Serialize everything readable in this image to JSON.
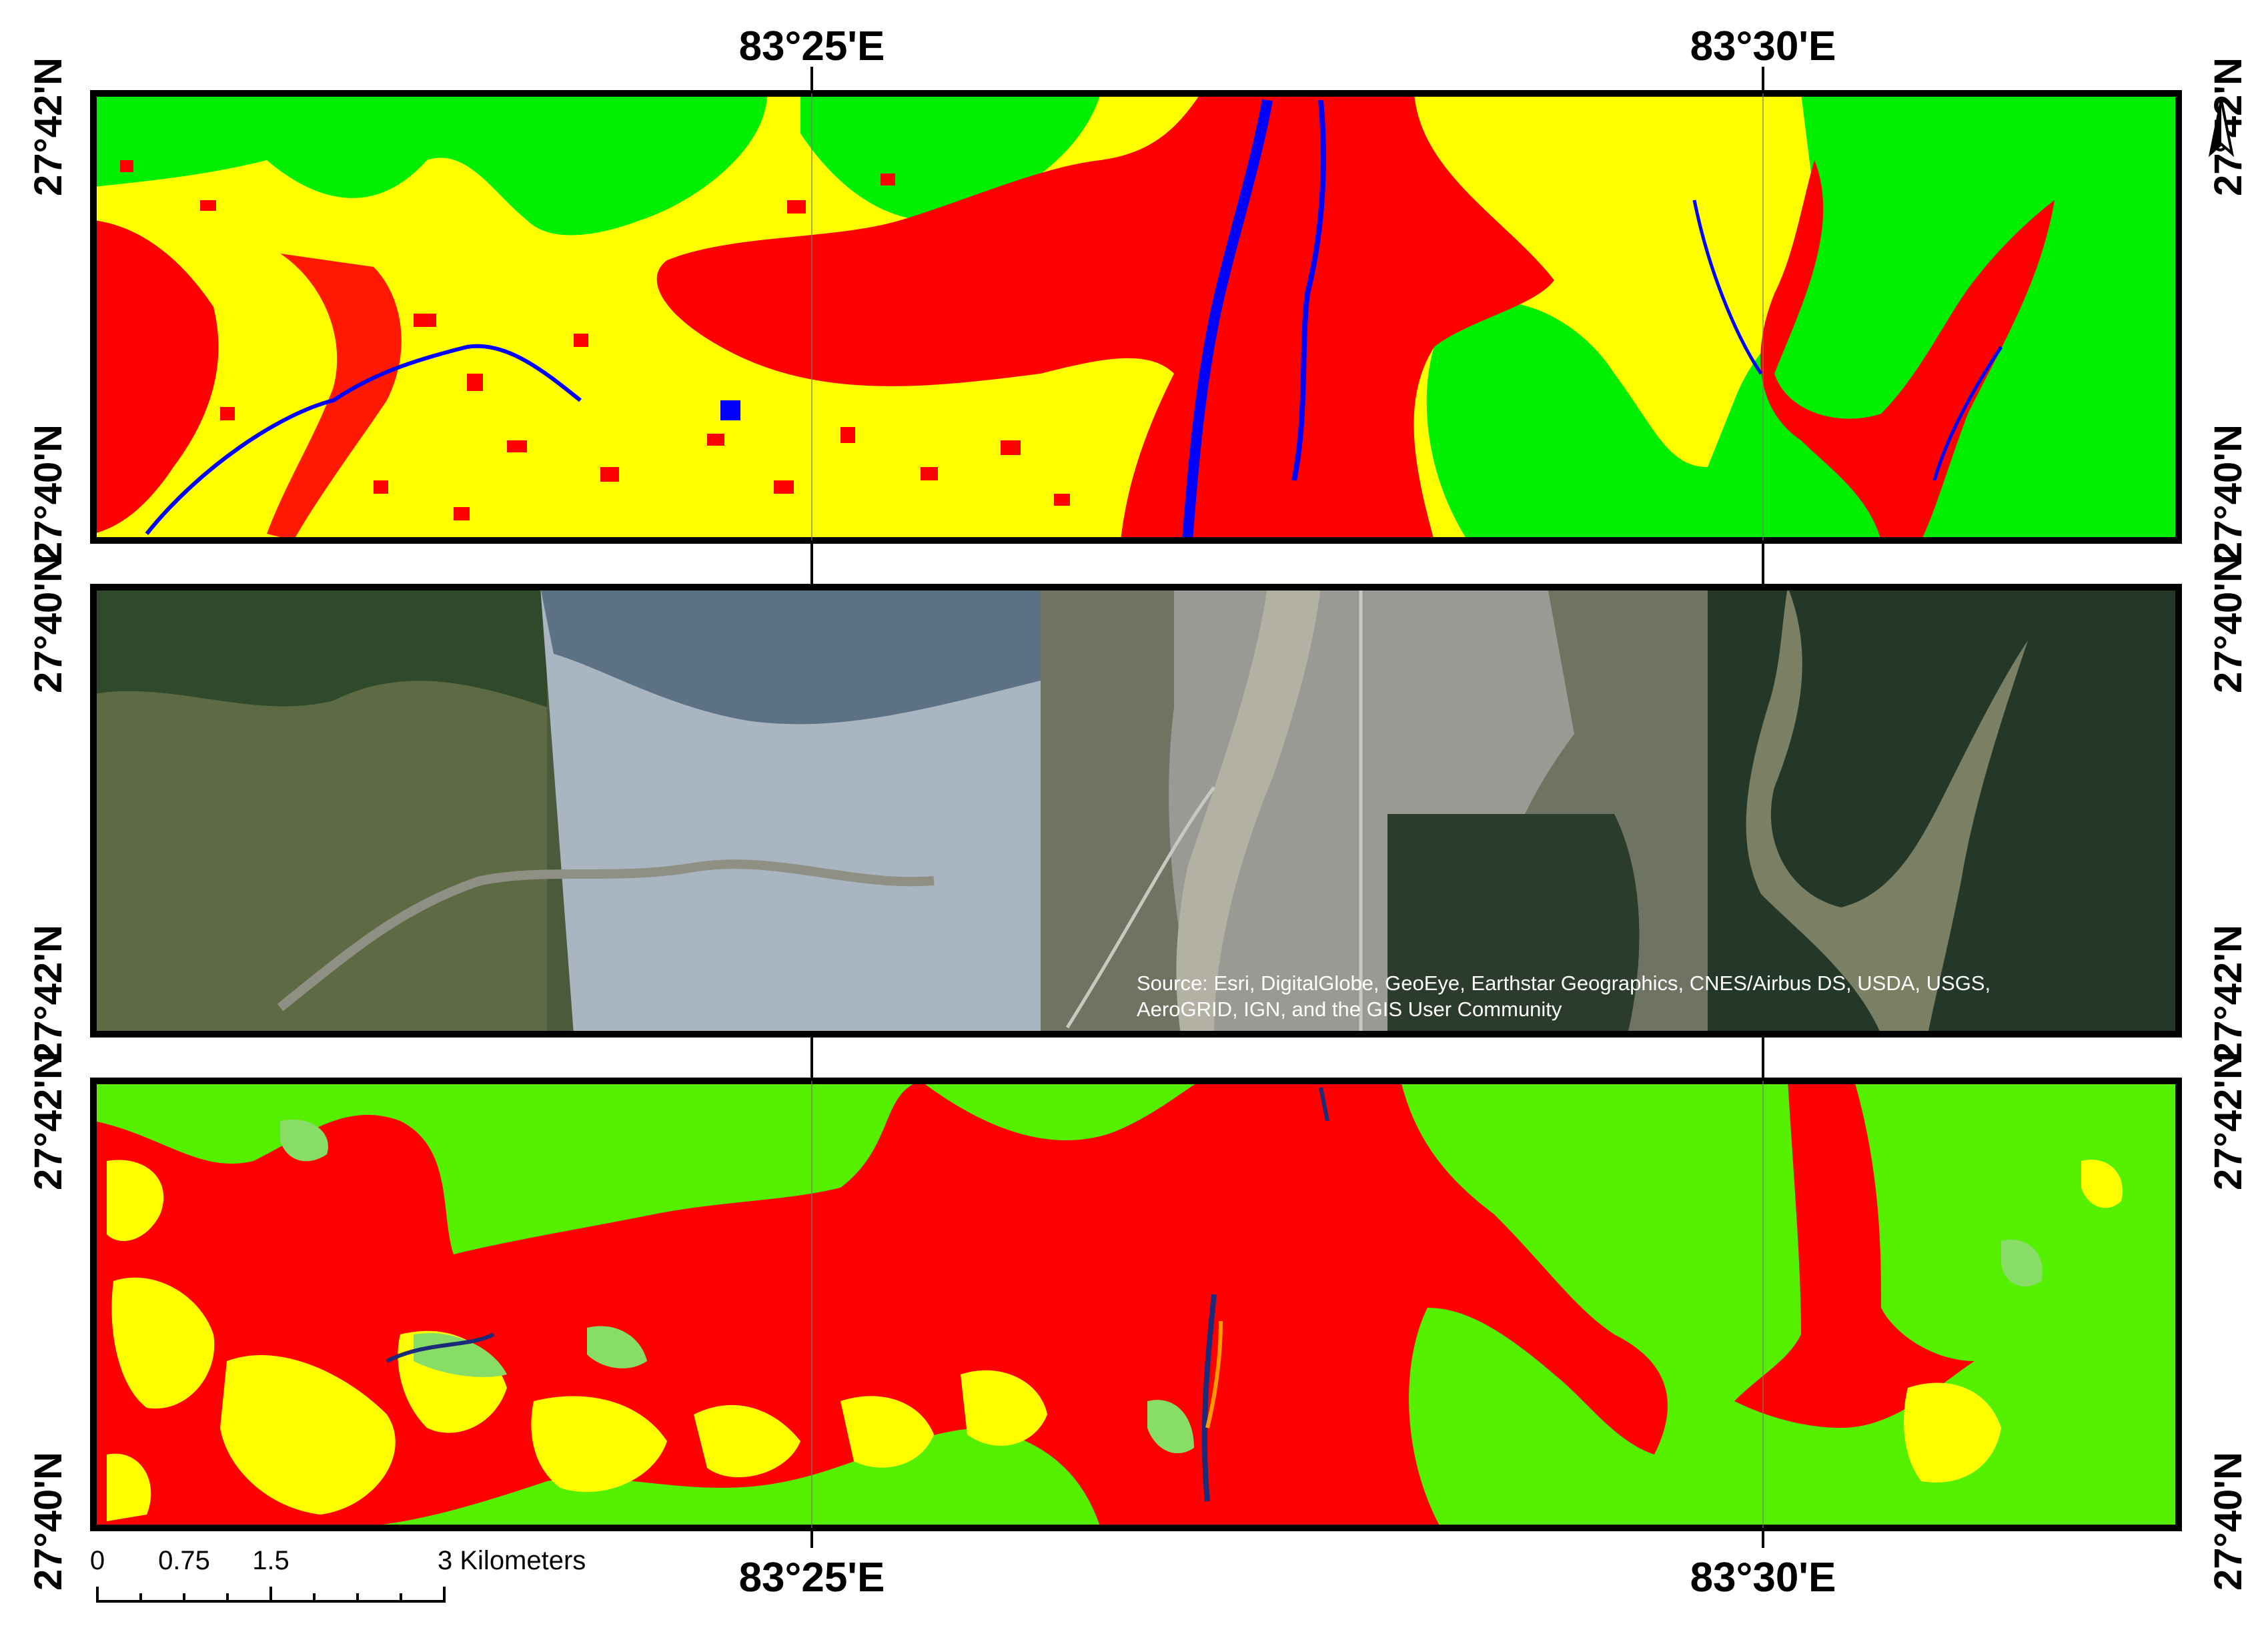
{
  "map": {
    "longitude_labels_top": [
      "83°25'E",
      "83°30'E"
    ],
    "longitude_labels_bottom": [
      "83°25'E",
      "83°30'E"
    ],
    "panel1": {
      "lat_top": "27°42'N",
      "lat_bottom": "27°40'N",
      "lat_right_top": "27°42'N",
      "lat_right_bottom": "27°40'N"
    },
    "panel2": {
      "lat_top_left": "27°40'N",
      "lat_bottom_left": "27°42'N",
      "lat_top_right": "27°40'N",
      "lat_bottom_right": "27°42'N"
    },
    "panel3": {
      "lat_top": "27°42'N",
      "lat_bottom": "27°40'N",
      "lat_right_top": "27°42'N",
      "lat_right_bottom": "27°40'N"
    },
    "source_line1": "Source: Esri, DigitalGlobe, GeoEye, Earthstar Geographics, CNES/Airbus DS, USDA, USGS,",
    "source_line2": "AeroGRID, IGN, and the GIS User Community",
    "scale_bar": {
      "ticks": [
        "0",
        "0.75",
        "1.5",
        "3 Kilometers"
      ]
    },
    "colors": {
      "classification_forest": "#00ee00",
      "classification_forest_alt": "#55f000",
      "classification_agriculture": "#ffff00",
      "classification_builtup": "#ff0000",
      "classification_water": "#0000ff",
      "classification_grass": "#88dd66",
      "imagery_forest": "#2f4a2a",
      "imagery_urban": "#9a9a95",
      "imagery_haze": "#a9b6c2"
    },
    "icons": [
      "north-arrow-icon"
    ]
  }
}
